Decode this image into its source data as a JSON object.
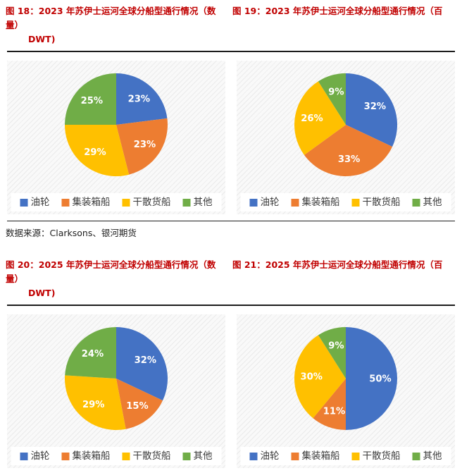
{
  "page": {
    "title_color": "#C00000",
    "source_note": "数据来源：Clarksons、银河期货"
  },
  "sections": [
    {
      "left_title_line1": "图 18：2023 年苏伊士运河全球分船型通行情况（数量）",
      "left_title_line2": "DWT)",
      "right_title_line1": "图 19：2023 年苏伊士运河全球分船型通行情况（百"
    },
    {
      "left_title_line1": "图 20：2025 年苏伊士运河全球分船型通行情况（数量）",
      "left_title_line2": "DWT)",
      "right_title_line1": "图 21：2025 年苏伊士运河全球分船型通行情况（百"
    }
  ],
  "chart_data": [
    {
      "type": "pie",
      "title": "图 18：2023 年苏伊士运河全球分船型通行情况（数量）",
      "categories": [
        "油轮",
        "集装箱船",
        "干散货船",
        "其他"
      ],
      "values": [
        23,
        23,
        29,
        25
      ],
      "labels": [
        "23%",
        "23%",
        "29%",
        "25%"
      ],
      "colors": [
        "#4472C4",
        "#ED7D31",
        "#FFC000",
        "#70AD47"
      ],
      "start_angle": 0,
      "direction": "clockwise",
      "legend_position": "bottom"
    },
    {
      "type": "pie",
      "title": "图 19：2023 年苏伊士运河全球分船型通行情况（百 DWT)",
      "categories": [
        "油轮",
        "集装箱船",
        "干散货船",
        "其他"
      ],
      "values": [
        32,
        33,
        26,
        9
      ],
      "labels": [
        "32%",
        "33%",
        "26%",
        "9%"
      ],
      "colors": [
        "#4472C4",
        "#ED7D31",
        "#FFC000",
        "#70AD47"
      ],
      "start_angle": 0,
      "direction": "clockwise",
      "legend_position": "bottom"
    },
    {
      "type": "pie",
      "title": "图 20：2025 年苏伊士运河全球分船型通行情况（数量）",
      "categories": [
        "油轮",
        "集装箱船",
        "干散货船",
        "其他"
      ],
      "values": [
        32,
        15,
        29,
        24
      ],
      "labels": [
        "32%",
        "15%",
        "29%",
        "24%"
      ],
      "colors": [
        "#4472C4",
        "#ED7D31",
        "#FFC000",
        "#70AD47"
      ],
      "start_angle": 0,
      "direction": "clockwise",
      "legend_position": "bottom"
    },
    {
      "type": "pie",
      "title": "图 21：2025 年苏伊士运河全球分船型通行情况（百 DWT)",
      "categories": [
        "油轮",
        "集装箱船",
        "干散货船",
        "其他"
      ],
      "values": [
        50,
        11,
        30,
        9
      ],
      "labels": [
        "50%",
        "11%",
        "30%",
        "9%"
      ],
      "colors": [
        "#4472C4",
        "#ED7D31",
        "#FFC000",
        "#70AD47"
      ],
      "start_angle": 0,
      "direction": "clockwise",
      "legend_position": "bottom"
    }
  ]
}
